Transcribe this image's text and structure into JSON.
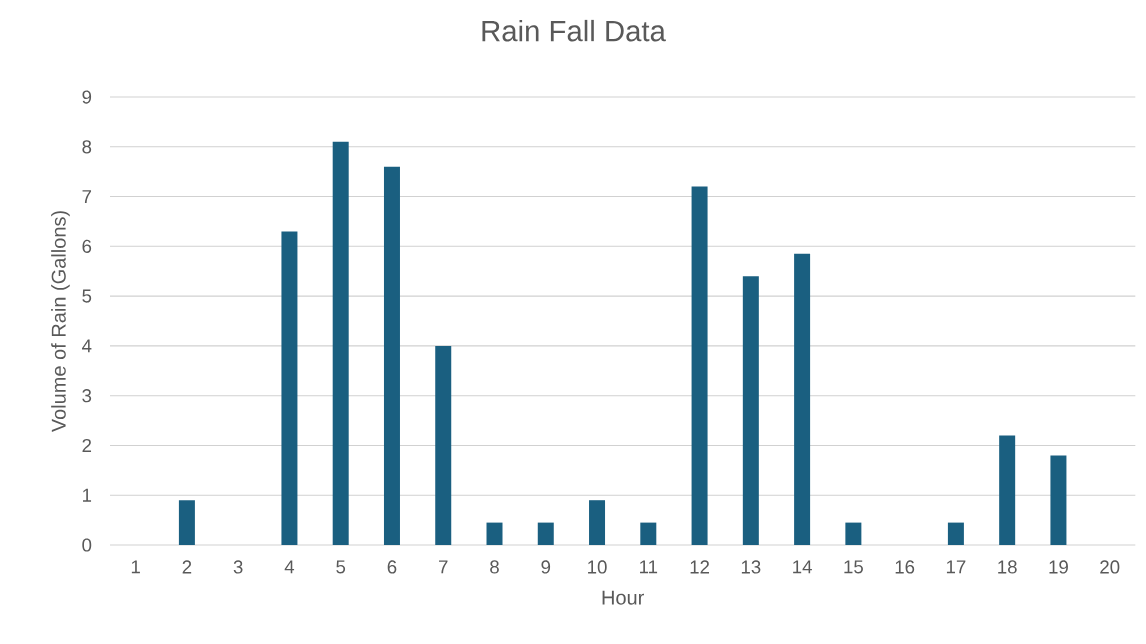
{
  "chart_data": {
    "type": "bar",
    "title": "Rain Fall Data",
    "xlabel": "Hour",
    "ylabel": "Volume of Rain (Gallons)",
    "categories": [
      "1",
      "2",
      "3",
      "4",
      "5",
      "6",
      "7",
      "8",
      "9",
      "10",
      "11",
      "12",
      "13",
      "14",
      "15",
      "16",
      "17",
      "18",
      "19",
      "20"
    ],
    "values": [
      0,
      0.9,
      0,
      6.3,
      8.1,
      7.6,
      4.0,
      0.45,
      0.45,
      0.9,
      0.45,
      7.2,
      5.4,
      5.85,
      0.45,
      0,
      0.45,
      2.2,
      1.8,
      0
    ],
    "color": "#1a5f80",
    "ylim": [
      0,
      9
    ],
    "yticks": [
      0,
      1,
      2,
      3,
      4,
      5,
      6,
      7,
      8,
      9
    ],
    "grid": "y"
  }
}
